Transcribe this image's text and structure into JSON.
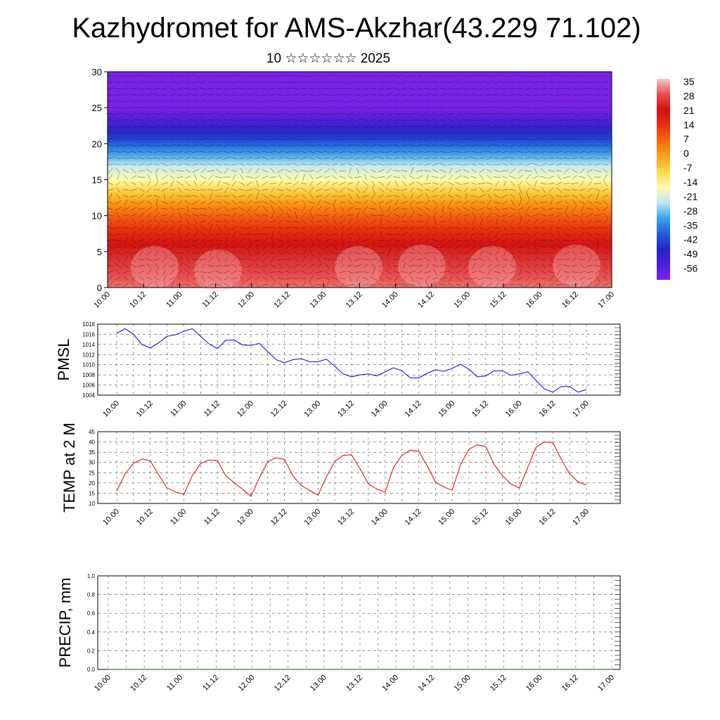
{
  "header": {
    "title": "Kazhydromet for AMS-Akzhar(43.229 71.102)",
    "subtitle": "10 ☆☆☆☆☆☆ 2025"
  },
  "chart_data": [
    {
      "type": "heatmap",
      "name": "vertical cross-section",
      "ylim": [
        0,
        30
      ],
      "y_ticks": [
        "0",
        "5",
        "10",
        "15",
        "20",
        "25",
        "30"
      ],
      "x_ticks": [
        "10.00",
        "10.12",
        "11.00",
        "11.12",
        "12.00",
        "12.12",
        "13.00",
        "13.12",
        "14.00",
        "14.12",
        "15.00",
        "15.12",
        "16.00",
        "16.12",
        "17.00"
      ],
      "colorbar": {
        "labels": [
          "35",
          "28",
          "21",
          "14",
          "7",
          "0",
          "-7",
          "-14",
          "-21",
          "-28",
          "-35",
          "-42",
          "-49",
          "-56"
        ],
        "colors_top_to_bottom": [
          "#f4c8c8",
          "#e85050",
          "#d01010",
          "#e83010",
          "#f56a10",
          "#f9a21a",
          "#fcd84a",
          "#fffab0",
          "#bfe6f2",
          "#38a6e6",
          "#2460dc",
          "#2424c8",
          "#4b1ed8",
          "#7a22e8"
        ]
      },
      "temperature_by_level": [
        {
          "height": 0,
          "value": 30
        },
        {
          "height": 5,
          "value": 23
        },
        {
          "height": 10,
          "value": 8
        },
        {
          "height": 13,
          "value": -4
        },
        {
          "height": 15,
          "value": -14
        },
        {
          "height": 17,
          "value": -21
        },
        {
          "height": 20,
          "value": -35
        },
        {
          "height": 23,
          "value": -49
        },
        {
          "height": 25,
          "value": -56
        },
        {
          "height": 30,
          "value": -56
        }
      ],
      "wind": "vectors"
    },
    {
      "type": "line",
      "ylabel": "PMSL",
      "ylim": [
        1004,
        1018
      ],
      "y_ticks": [
        "1004",
        "1006",
        "1008",
        "1010",
        "1012",
        "1014",
        "1016",
        "1018"
      ],
      "x_ticks": [
        "10.00",
        "10.12",
        "11.00",
        "11.12",
        "12.00",
        "12.12",
        "13.00",
        "13.12",
        "14.00",
        "14.12",
        "15.00",
        "15.12",
        "16.00",
        "16.12",
        "17.00"
      ],
      "series": [
        {
          "color": "#0000ee",
          "values": [
            1016.2,
            1017.1,
            1016.0,
            1014.0,
            1013.3,
            1014.3,
            1015.6,
            1015.9,
            1016.6,
            1017.1,
            1015.6,
            1014.1,
            1013.2,
            1014.8,
            1014.9,
            1013.9,
            1013.8,
            1014.2,
            1012.6,
            1011.0,
            1010.4,
            1011.0,
            1011.2,
            1010.6,
            1010.6,
            1011.1,
            1009.7,
            1008.2,
            1007.6,
            1008.0,
            1008.2,
            1007.8,
            1008.6,
            1009.4,
            1008.8,
            1007.4,
            1007.4,
            1008.3,
            1009.0,
            1008.7,
            1009.3,
            1010.1,
            1009.1,
            1007.6,
            1007.8,
            1008.8,
            1008.8,
            1007.9,
            1008.2,
            1008.6,
            1006.9,
            1005.2,
            1004.6,
            1005.7,
            1005.7,
            1004.6,
            1005.1
          ]
        }
      ]
    },
    {
      "type": "line",
      "ylabel": "TEMP at 2 M",
      "ylim": [
        10,
        45
      ],
      "y_ticks": [
        "10",
        "15",
        "20",
        "25",
        "30",
        "35",
        "40",
        "45"
      ],
      "x_ticks": [
        "10.00",
        "10.12",
        "11.00",
        "11.12",
        "12.00",
        "12.12",
        "13.00",
        "13.12",
        "14.00",
        "14.12",
        "15.00",
        "15.12",
        "16.00",
        "16.12",
        "17.00"
      ],
      "series": [
        {
          "color": "#dd0000",
          "values": [
            16,
            24.5,
            29.5,
            31.7,
            30.8,
            24,
            17.6,
            15.6,
            14.4,
            23.5,
            29.5,
            31.2,
            30.9,
            23.6,
            20.1,
            17,
            13.5,
            22.5,
            30.3,
            32.3,
            31.5,
            23.5,
            18.8,
            16.3,
            14,
            23,
            30.5,
            33.5,
            33.7,
            27,
            19.5,
            17,
            15.5,
            27.5,
            33.5,
            36,
            35.5,
            28.5,
            20.5,
            18,
            16.5,
            29,
            36.5,
            38.6,
            37.8,
            29,
            23.5,
            19.5,
            17.5,
            27.5,
            37.5,
            40,
            39.8,
            31.5,
            24.5,
            20.5,
            19
          ]
        }
      ]
    },
    {
      "type": "line",
      "ylabel": "PRECIP, mm",
      "ylim": [
        0,
        1
      ],
      "y_ticks": [
        "0.0",
        "0.2",
        "0.4",
        "0.6",
        "0.8",
        "1.0"
      ],
      "x_ticks": [
        "10.00",
        "10.12",
        "11.00",
        "11.12",
        "12.00",
        "12.12",
        "13.00",
        "13.12",
        "14.00",
        "14.12",
        "15.00",
        "15.12",
        "16.00",
        "16.12",
        "17.00"
      ],
      "series": [
        {
          "color": "#006400",
          "values": [
            0,
            0,
            0,
            0,
            0,
            0,
            0,
            0,
            0,
            0,
            0,
            0,
            0,
            0,
            0,
            0,
            0,
            0,
            0,
            0,
            0,
            0,
            0,
            0,
            0,
            0,
            0,
            0,
            0,
            0,
            0,
            0,
            0,
            0,
            0,
            0,
            0,
            0,
            0,
            0,
            0,
            0,
            0,
            0,
            0,
            0,
            0,
            0,
            0,
            0,
            0,
            0,
            0,
            0,
            0,
            0,
            0
          ]
        }
      ]
    }
  ]
}
